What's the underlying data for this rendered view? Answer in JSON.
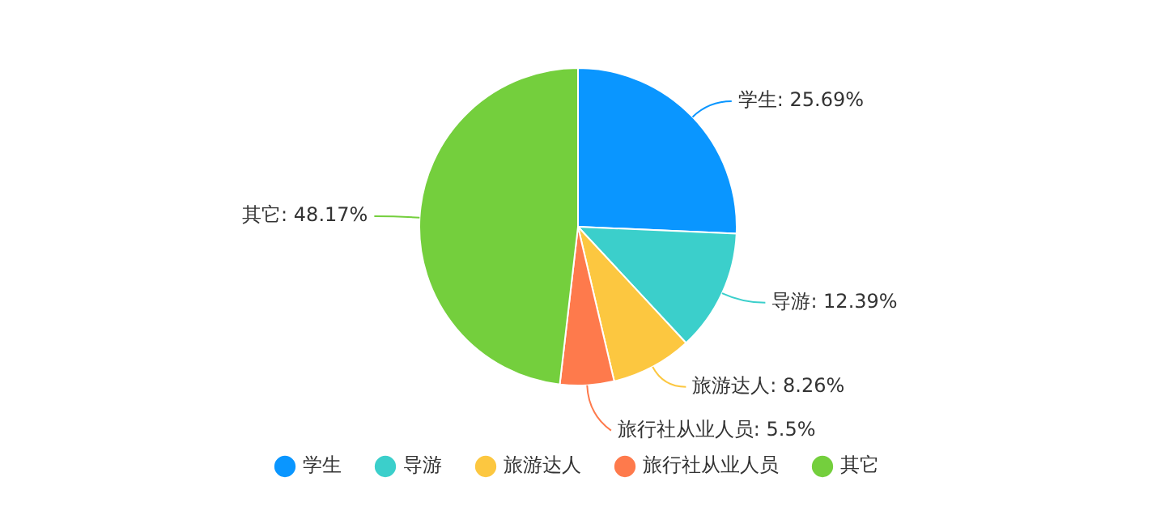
{
  "chart_data": {
    "type": "pie",
    "categories": [
      "学生",
      "导游",
      "旅游达人",
      "旅行社从业人员",
      "其它"
    ],
    "values": [
      25.69,
      12.39,
      8.26,
      5.5,
      48.17
    ],
    "colors": [
      "#0a96ff",
      "#3bcfcb",
      "#fcc740",
      "#fe7a4c",
      "#74cf3d"
    ],
    "value_labels": [
      "学生: 25.69%",
      "导游: 12.39%",
      "旅游达人: 8.26%",
      "旅行社从业人员: 5.5%",
      "其它: 48.17%"
    ],
    "legend": "bottom"
  }
}
